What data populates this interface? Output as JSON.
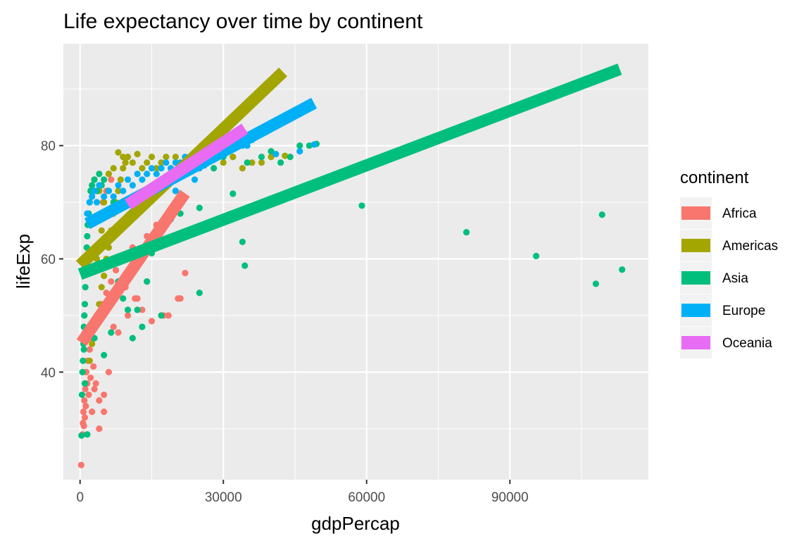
{
  "chart_data": {
    "type": "scatter",
    "title": "Life expectancy over time by continent",
    "xlabel": "gdpPercap",
    "ylabel": "lifeExp",
    "xlim": [
      -3500,
      119000
    ],
    "ylim": [
      21,
      98
    ],
    "x_ticks": [
      0,
      30000,
      60000,
      90000
    ],
    "x_tick_labels": [
      "0",
      "30000",
      "60000",
      "90000"
    ],
    "y_ticks": [
      40,
      60,
      80
    ],
    "y_tick_labels": [
      "40",
      "60",
      "80"
    ],
    "grid": true,
    "legend": {
      "title": "continent",
      "position": "right"
    },
    "colors": {
      "Africa": "#F8766D",
      "Americas": "#A3A500",
      "Asia": "#00BF7D",
      "Europe": "#00B0F6",
      "Oceania": "#E76BF3"
    },
    "series": [
      {
        "name": "Africa",
        "fit_line": [
          [
            300,
            45.2
          ],
          [
            21950,
            71.6
          ]
        ],
        "points": [
          [
            241,
            23.6
          ],
          [
            500,
            29
          ],
          [
            600,
            31
          ],
          [
            700,
            33
          ],
          [
            800,
            30.5
          ],
          [
            900,
            35
          ],
          [
            1000,
            32
          ],
          [
            1100,
            37
          ],
          [
            1200,
            34
          ],
          [
            1300,
            40
          ],
          [
            1500,
            38
          ],
          [
            1600,
            42
          ],
          [
            1800,
            36
          ],
          [
            2000,
            44
          ],
          [
            2200,
            39
          ],
          [
            2500,
            46
          ],
          [
            2800,
            41
          ],
          [
            3000,
            48
          ],
          [
            3300,
            38
          ],
          [
            3600,
            50
          ],
          [
            4000,
            35
          ],
          [
            4500,
            52
          ],
          [
            5000,
            33
          ],
          [
            5500,
            54
          ],
          [
            6000,
            40
          ],
          [
            6500,
            56
          ],
          [
            7000,
            48
          ],
          [
            7500,
            58
          ],
          [
            8000,
            47
          ],
          [
            9000,
            60
          ],
          [
            10000,
            50
          ],
          [
            11000,
            62
          ],
          [
            12000,
            53
          ],
          [
            13000,
            51
          ],
          [
            14000,
            64
          ],
          [
            15000,
            49
          ],
          [
            16000,
            66
          ],
          [
            17500,
            50
          ],
          [
            18500,
            50
          ],
          [
            19500,
            69
          ],
          [
            20500,
            53
          ],
          [
            21000,
            53
          ],
          [
            22000,
            57.5
          ],
          [
            4000,
            30
          ],
          [
            3000,
            37
          ],
          [
            2500,
            33
          ],
          [
            5000,
            36
          ],
          [
            6000,
            75
          ],
          [
            5500,
            72
          ],
          [
            6500,
            74
          ],
          [
            4800,
            70
          ],
          [
            7000,
            60
          ],
          [
            8000,
            55
          ],
          [
            9500,
            55
          ],
          [
            11500,
            53
          ]
        ]
      },
      {
        "name": "Americas",
        "fit_line": [
          [
            0,
            58.9
          ],
          [
            42500,
            93
          ]
        ],
        "points": [
          [
            2000,
            42
          ],
          [
            2500,
            45
          ],
          [
            3000,
            48
          ],
          [
            3500,
            50
          ],
          [
            4000,
            52
          ],
          [
            4500,
            55
          ],
          [
            5000,
            57
          ],
          [
            5500,
            60
          ],
          [
            6000,
            62
          ],
          [
            6500,
            65
          ],
          [
            7000,
            68
          ],
          [
            7500,
            70
          ],
          [
            8000,
            72
          ],
          [
            8500,
            74
          ],
          [
            9000,
            76
          ],
          [
            9500,
            77
          ],
          [
            10000,
            78
          ],
          [
            11000,
            77
          ],
          [
            12000,
            78.5
          ],
          [
            13000,
            76
          ],
          [
            14000,
            77
          ],
          [
            15000,
            78
          ],
          [
            16000,
            76
          ],
          [
            17000,
            77
          ],
          [
            18000,
            78
          ],
          [
            19000,
            76
          ],
          [
            20000,
            78
          ],
          [
            22000,
            77
          ],
          [
            24000,
            78
          ],
          [
            26000,
            77
          ],
          [
            28000,
            78
          ],
          [
            30000,
            77
          ],
          [
            32000,
            78
          ],
          [
            34000,
            76
          ],
          [
            36000,
            77
          ],
          [
            38000,
            77
          ],
          [
            40000,
            78
          ],
          [
            42900,
            78.2
          ],
          [
            3000,
            74
          ],
          [
            4000,
            72
          ],
          [
            5000,
            70
          ],
          [
            6000,
            75
          ],
          [
            7000,
            76
          ],
          [
            8000,
            78.8
          ],
          [
            9000,
            78
          ],
          [
            3500,
            60
          ],
          [
            4500,
            65
          ]
        ]
      },
      {
        "name": "Asia",
        "fit_line": [
          [
            0,
            57.3
          ],
          [
            113000,
            93.5
          ]
        ],
        "points": [
          [
            300,
            28.8
          ],
          [
            400,
            36
          ],
          [
            500,
            40
          ],
          [
            600,
            42
          ],
          [
            700,
            45
          ],
          [
            800,
            48
          ],
          [
            900,
            50
          ],
          [
            1000,
            52
          ],
          [
            1100,
            55
          ],
          [
            1200,
            58
          ],
          [
            1300,
            60
          ],
          [
            1400,
            62
          ],
          [
            1500,
            64
          ],
          [
            1600,
            66
          ],
          [
            1800,
            68
          ],
          [
            2000,
            70
          ],
          [
            2200,
            72
          ],
          [
            2500,
            73
          ],
          [
            3000,
            74
          ],
          [
            3500,
            72
          ],
          [
            4000,
            75
          ],
          [
            4500,
            73
          ],
          [
            5000,
            74
          ],
          [
            6000,
            72
          ],
          [
            7000,
            70
          ],
          [
            8000,
            56
          ],
          [
            9000,
            53
          ],
          [
            10000,
            51
          ],
          [
            11000,
            46
          ],
          [
            12000,
            51
          ],
          [
            13000,
            48
          ],
          [
            14000,
            56
          ],
          [
            15000,
            61
          ],
          [
            16000,
            63
          ],
          [
            17000,
            50
          ],
          [
            18000,
            66
          ],
          [
            19000,
            67
          ],
          [
            20000,
            72
          ],
          [
            21000,
            68
          ],
          [
            25000,
            54
          ],
          [
            25000,
            69
          ],
          [
            28000,
            76
          ],
          [
            30000,
            78
          ],
          [
            32000,
            71.5
          ],
          [
            34000,
            63
          ],
          [
            34500,
            58.8
          ],
          [
            35000,
            77
          ],
          [
            38000,
            78
          ],
          [
            40000,
            79
          ],
          [
            42000,
            77
          ],
          [
            44000,
            78
          ],
          [
            46000,
            80
          ],
          [
            48000,
            80
          ],
          [
            49500,
            80.3
          ],
          [
            59000,
            69.4
          ],
          [
            80900,
            64.7
          ],
          [
            95500,
            60.5
          ],
          [
            108000,
            55.6
          ],
          [
            109300,
            67.8
          ],
          [
            113500,
            58.1
          ],
          [
            1500,
            29
          ],
          [
            1000,
            38
          ],
          [
            800,
            44
          ],
          [
            3000,
            46
          ],
          [
            5000,
            43
          ],
          [
            6500,
            47
          ]
        ]
      },
      {
        "name": "Europe",
        "fit_line": [
          [
            1500,
            66.2
          ],
          [
            49000,
            87.5
          ]
        ],
        "points": [
          [
            1500,
            68
          ],
          [
            2000,
            70
          ],
          [
            2500,
            71
          ],
          [
            3000,
            72
          ],
          [
            3500,
            70
          ],
          [
            4000,
            73
          ],
          [
            5000,
            71
          ],
          [
            6000,
            72
          ],
          [
            7000,
            71
          ],
          [
            8000,
            73
          ],
          [
            9000,
            72
          ],
          [
            10000,
            74
          ],
          [
            11000,
            73
          ],
          [
            12000,
            75
          ],
          [
            13000,
            74
          ],
          [
            14000,
            75
          ],
          [
            15000,
            76
          ],
          [
            16000,
            75
          ],
          [
            17000,
            76
          ],
          [
            18000,
            77
          ],
          [
            19000,
            76
          ],
          [
            20000,
            77
          ],
          [
            21000,
            77
          ],
          [
            22000,
            78
          ],
          [
            23000,
            78
          ],
          [
            24000,
            77
          ],
          [
            25000,
            76
          ],
          [
            26000,
            77
          ],
          [
            27000,
            78
          ],
          [
            28000,
            79
          ],
          [
            29000,
            80
          ],
          [
            30000,
            79
          ],
          [
            31000,
            80
          ],
          [
            32000,
            80
          ],
          [
            33000,
            81
          ],
          [
            34000,
            80
          ],
          [
            35000,
            80
          ],
          [
            36000,
            81
          ],
          [
            41000,
            78.5
          ],
          [
            46000,
            79
          ],
          [
            49000,
            80.2
          ],
          [
            20000,
            72
          ],
          [
            24000,
            74
          ],
          [
            26000,
            76.5
          ]
        ]
      },
      {
        "name": "Oceania",
        "fit_line": [
          [
            10000,
            69.6
          ],
          [
            34500,
            83
          ]
        ],
        "points": [
          [
            10000,
            70
          ],
          [
            12000,
            71
          ],
          [
            14000,
            72
          ],
          [
            16000,
            73
          ],
          [
            18000,
            74
          ],
          [
            20000,
            75
          ],
          [
            22000,
            76
          ],
          [
            24000,
            77
          ],
          [
            26000,
            78
          ],
          [
            28000,
            79
          ],
          [
            30000,
            80
          ],
          [
            32000,
            80.5
          ],
          [
            34000,
            81
          ]
        ]
      }
    ]
  }
}
